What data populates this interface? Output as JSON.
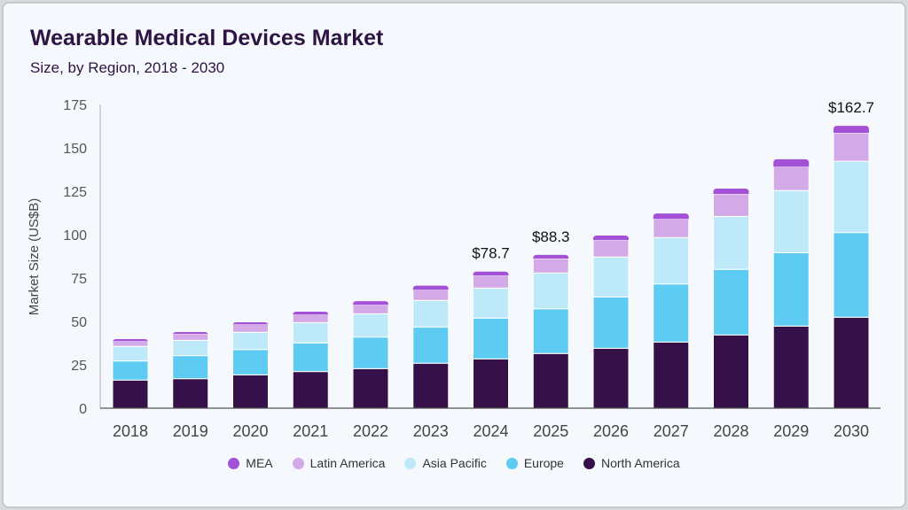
{
  "chart_data": {
    "type": "bar",
    "stacked": true,
    "title": "Wearable Medical Devices Market",
    "subtitle": "Size, by Region, 2018 - 2030",
    "xlabel": "",
    "ylabel": "Market Size (US$B)",
    "ylim": [
      0,
      175
    ],
    "yticks": [
      0,
      25,
      50,
      75,
      100,
      125,
      150,
      175
    ],
    "grid": false,
    "legend_position": "bottom",
    "categories": [
      "2018",
      "2019",
      "2020",
      "2021",
      "2022",
      "2023",
      "2024",
      "2025",
      "2026",
      "2027",
      "2028",
      "2029",
      "2030"
    ],
    "series": [
      {
        "name": "North America",
        "color": "#361048",
        "values": [
          16.2,
          17.0,
          19.2,
          21.1,
          22.8,
          25.9,
          28.4,
          31.5,
          34.5,
          38.1,
          42.2,
          47.3,
          52.4
        ]
      },
      {
        "name": "Europe",
        "color": "#5ecbf3",
        "values": [
          11.0,
          13.3,
          14.6,
          16.5,
          18.2,
          20.9,
          23.5,
          25.8,
          29.6,
          33.5,
          37.8,
          42.3,
          48.8
        ]
      },
      {
        "name": "Asia Pacific",
        "color": "#bde9f9",
        "values": [
          8.4,
          8.8,
          9.9,
          11.7,
          13.4,
          15.3,
          17.3,
          20.6,
          23.0,
          26.7,
          30.5,
          35.8,
          41.1
        ]
      },
      {
        "name": "Latin America",
        "color": "#d4a9e8",
        "values": [
          3.0,
          3.6,
          4.6,
          4.6,
          5.1,
          6.1,
          7.2,
          8.3,
          9.8,
          10.7,
          13.0,
          13.7,
          16.4
        ]
      },
      {
        "name": "MEA",
        "color": "#a352d8",
        "values": [
          1.2,
          1.2,
          1.2,
          1.7,
          2.2,
          2.4,
          2.3,
          2.1,
          2.6,
          3.2,
          3.0,
          4.3,
          4.0
        ]
      }
    ],
    "annotations": [
      {
        "category": "2024",
        "text": "$78.7"
      },
      {
        "category": "2025",
        "text": "$88.3"
      },
      {
        "category": "2030",
        "text": "$162.7"
      }
    ],
    "legend_order": [
      "MEA",
      "Latin America",
      "Asia Pacific",
      "Europe",
      "North America"
    ]
  }
}
